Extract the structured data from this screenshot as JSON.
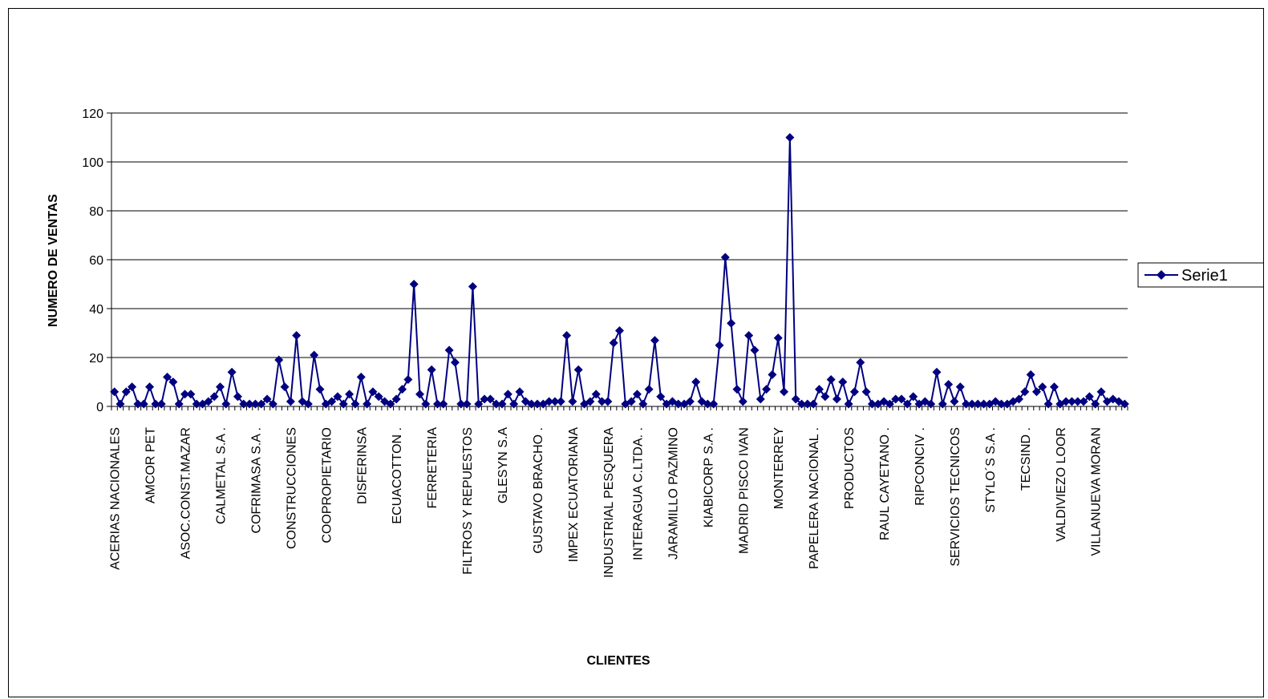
{
  "chart_data": {
    "type": "line",
    "title": "",
    "xlabel": "CLIENTES",
    "ylabel": "NUMERO DE VENTAS",
    "ylim": [
      0,
      120
    ],
    "yticks": [
      0,
      20,
      40,
      60,
      80,
      100,
      120
    ],
    "grid": "horizontal",
    "legend_position": "right",
    "line_color": "#000080",
    "marker": "diamond",
    "categories_labeled": [
      "ACERIAS NACIONALES",
      "AMCOR PET",
      "ASOC.CONST.MAZAR",
      "CALMETAL S.A .",
      "COFRIMASA S.A .",
      "CONSTRUCCIONES",
      "COOPROPIETARIO",
      "DISFERINSA",
      "ECUACOTTON .",
      "FERRETERIA",
      "FILTROS Y REPUESTOS",
      "GLESYN S.A",
      "GUSTAVO BRACHO .",
      "IMPEX ECUATORIANA",
      "INDUSTRIAL PESQUERA",
      "INTERAGUA C.LTDA. .",
      "JARAMILLO PAZMINO",
      "KIABICORP S.A .",
      "MADRID PISCO IVAN",
      "MONTERREY",
      "PAPELERA NACIONAL .",
      "PRODUCTOS",
      "RAUL CAYETANO .",
      "RIPCONCIV .",
      "SERVICIOS TECNICOS",
      "STYLO´S S.A .",
      "TECSIND .",
      "VALDIVIEZO LOOR",
      "VILLANUEVA MORAN"
    ],
    "series": [
      {
        "name": "Serie1",
        "values": [
          6,
          1,
          6,
          8,
          1,
          1,
          8,
          1,
          1,
          12,
          10,
          1,
          5,
          5,
          1,
          1,
          2,
          4,
          8,
          1,
          14,
          4,
          1,
          1,
          1,
          1,
          3,
          1,
          19,
          8,
          2,
          29,
          2,
          1,
          21,
          7,
          1,
          2,
          4,
          1,
          5,
          1,
          12,
          1,
          6,
          4,
          2,
          1,
          3,
          7,
          11,
          50,
          5,
          1,
          15,
          1,
          1,
          23,
          18,
          1,
          1,
          49,
          1,
          3,
          3,
          1,
          1,
          5,
          1,
          6,
          2,
          1,
          1,
          1,
          2,
          2,
          2,
          29,
          2,
          15,
          1,
          2,
          5,
          2,
          2,
          26,
          31,
          1,
          2,
          5,
          1,
          7,
          27,
          4,
          1,
          2,
          1,
          1,
          2,
          10,
          2,
          1,
          1,
          25,
          61,
          34,
          7,
          2,
          29,
          23,
          3,
          7,
          13,
          28,
          6,
          110,
          3,
          1,
          1,
          1,
          7,
          4,
          11,
          3,
          10,
          1,
          6,
          18,
          6,
          1,
          1,
          2,
          1,
          3,
          3,
          1,
          4,
          1,
          2,
          1,
          14,
          1,
          9,
          2,
          8,
          1,
          1,
          1,
          1,
          1,
          2,
          1,
          1,
          2,
          3,
          6,
          13,
          6,
          8,
          1,
          8,
          1,
          2,
          2,
          2,
          2,
          4,
          1,
          6,
          2,
          3,
          2,
          1
        ]
      }
    ]
  }
}
